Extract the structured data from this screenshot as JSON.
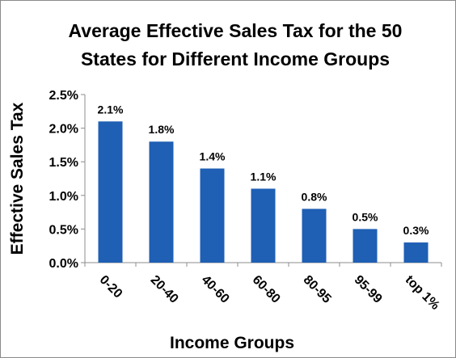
{
  "colors": {
    "bar": "#1f5fb4",
    "axis": "#8c8c8c"
  },
  "chart_data": {
    "type": "bar",
    "title": "Average Effective Sales Tax for the 50 States for Different Income Groups",
    "title_lines": [
      "Average Effective Sales Tax for the 50",
      "States for Different Income Groups"
    ],
    "xlabel": "Income Groups",
    "ylabel": "Effective Sales Tax",
    "categories": [
      "0-20",
      "20-40",
      "40-60",
      "60-80",
      "80-95",
      "95-99",
      "top 1%"
    ],
    "values": [
      2.1,
      1.8,
      1.4,
      1.1,
      0.8,
      0.5,
      0.3
    ],
    "data_labels": [
      "2.1%",
      "1.8%",
      "1.4%",
      "1.1%",
      "0.8%",
      "0.5%",
      "0.3%"
    ],
    "ylim": [
      0,
      2.5
    ],
    "yticks": [
      0,
      0.5,
      1.0,
      1.5,
      2.0,
      2.5
    ],
    "ytick_labels": [
      "0.0%",
      "0.5%",
      "1.0%",
      "1.5%",
      "2.0%",
      "2.5%"
    ],
    "grid": false,
    "legend": "none"
  }
}
